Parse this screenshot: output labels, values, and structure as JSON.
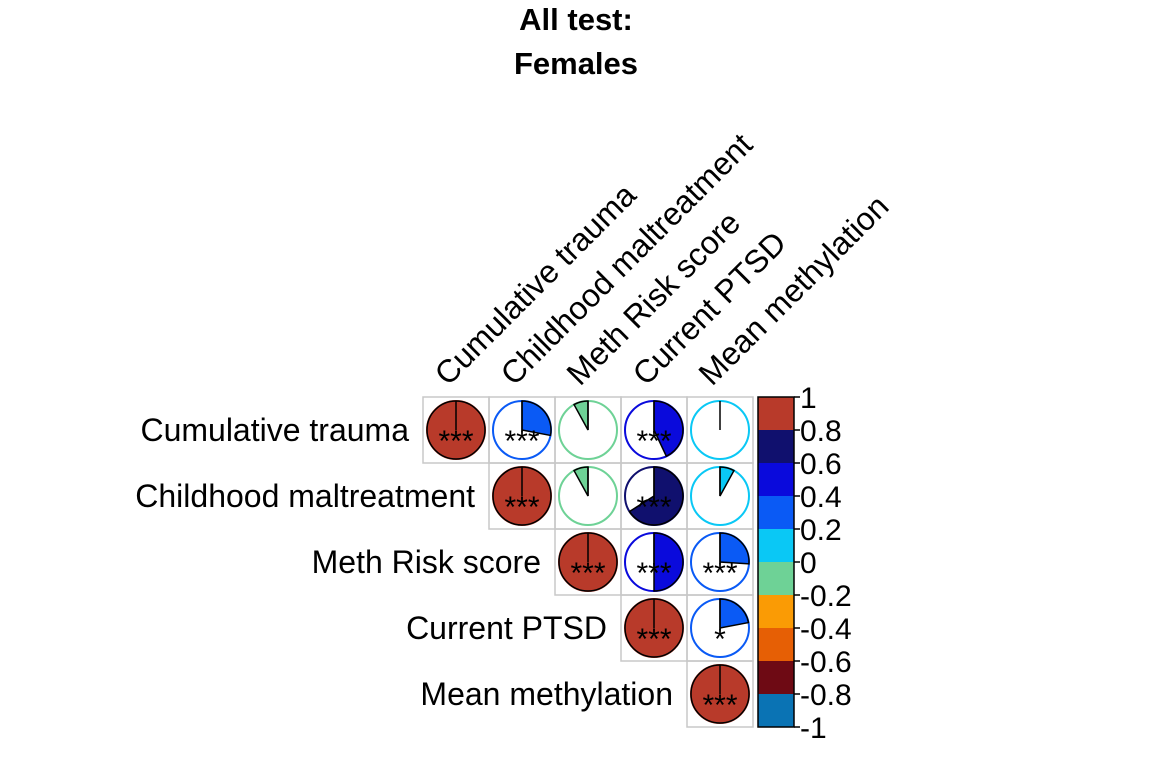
{
  "chart_data": {
    "type": "heatmap",
    "subtype": "correlation-pie-upper",
    "title": [
      "All test:",
      "Females"
    ],
    "variables": [
      "Cumulative trauma",
      "Childhood maltreatment",
      "Meth Risk score",
      "Current PTSD",
      "Mean methylation"
    ],
    "correlations": [
      [
        1.0,
        0.28,
        -0.08,
        0.43,
        0.0
      ],
      [
        0.28,
        1.0,
        -0.08,
        0.66,
        0.08
      ],
      [
        -0.08,
        -0.08,
        1.0,
        0.5,
        0.26
      ],
      [
        0.43,
        0.66,
        0.5,
        1.0,
        0.22
      ],
      [
        0.0,
        0.08,
        0.26,
        0.22,
        1.0
      ]
    ],
    "significance": [
      [
        "***",
        "***",
        "",
        "***",
        ""
      ],
      [
        "***",
        "***",
        "",
        "***",
        ""
      ],
      [
        "",
        "",
        "***",
        "***",
        "***"
      ],
      [
        "***",
        "***",
        "***",
        "***",
        "*"
      ],
      [
        "",
        "",
        "***",
        "*",
        "***"
      ]
    ],
    "colorbar": {
      "range": [
        -1,
        1
      ],
      "tick_labels": [
        "1",
        "0.8",
        "0.6",
        "0.4",
        "0.2",
        "0",
        "-0.2",
        "-0.4",
        "-0.6",
        "-0.8",
        "-1"
      ],
      "bins": [
        {
          "from": 0.8,
          "to": 1.0,
          "color": "#B83A2A"
        },
        {
          "from": 0.6,
          "to": 0.8,
          "color": "#10106E"
        },
        {
          "from": 0.4,
          "to": 0.6,
          "color": "#0A0ADC"
        },
        {
          "from": 0.2,
          "to": 0.4,
          "color": "#0A5AF5"
        },
        {
          "from": 0.0,
          "to": 0.2,
          "color": "#0AC8F5"
        },
        {
          "from": -0.2,
          "to": 0.0,
          "color": "#6ED296"
        },
        {
          "from": -0.4,
          "to": -0.2,
          "color": "#FA9B05"
        },
        {
          "from": -0.6,
          "to": -0.4,
          "color": "#E65F05"
        },
        {
          "from": -0.8,
          "to": -0.6,
          "color": "#6E0A14"
        },
        {
          "from": -1.0,
          "to": -0.8,
          "color": "#0A73B4"
        }
      ]
    },
    "grid": true,
    "legend": "right"
  }
}
